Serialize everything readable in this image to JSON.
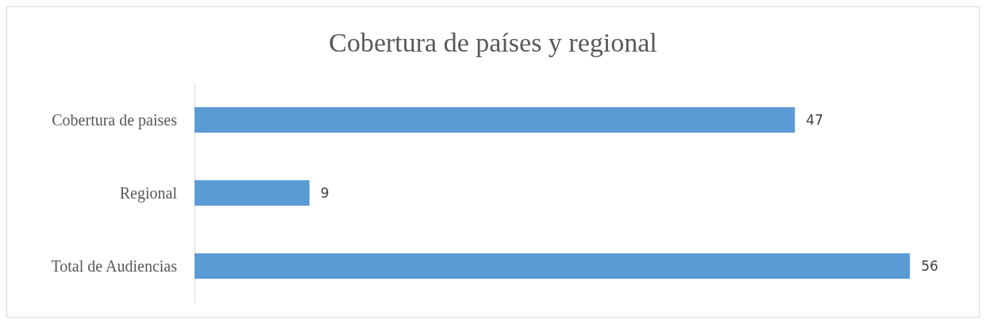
{
  "chart_data": {
    "type": "bar",
    "orientation": "horizontal",
    "title": "Cobertura de países y regional",
    "categories": [
      "Cobertura de paises",
      "Regional",
      "Total de Audiencias"
    ],
    "values": [
      47,
      9,
      56
    ],
    "color": "#5b9bd5",
    "data_labels": true
  }
}
